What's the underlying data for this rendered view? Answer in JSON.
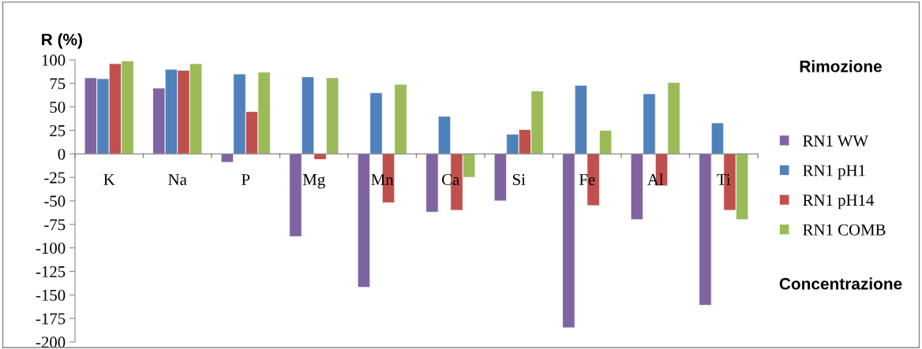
{
  "chart_data": {
    "type": "bar",
    "ylabel": "R (%)",
    "categories": [
      "K",
      "Na",
      "P",
      "Mg",
      "Mn",
      "Ca",
      "Si",
      "Fe",
      "Al",
      "Ti"
    ],
    "series": [
      {
        "name": "RN1 WW",
        "color": "#8064a2",
        "values": [
          81,
          70,
          -9,
          -88,
          -142,
          -62,
          -50,
          -185,
          -70,
          -161
        ]
      },
      {
        "name": "RN1 pH1",
        "color": "#4f81bd",
        "values": [
          80,
          90,
          85,
          82,
          65,
          40,
          21,
          73,
          64,
          33
        ]
      },
      {
        "name": "RN1 pH14",
        "color": "#c0504d",
        "values": [
          96,
          89,
          45,
          -6,
          -52,
          -60,
          26,
          -55,
          -34,
          -60
        ]
      },
      {
        "name": "RN1 COMB",
        "color": "#9bbb59",
        "values": [
          99,
          96,
          87,
          81,
          74,
          -25,
          67,
          25,
          76,
          -70
        ]
      }
    ],
    "ylim": [
      -200,
      100
    ],
    "yticks": [
      -200,
      -175,
      -150,
      -125,
      -100,
      -75,
      -50,
      -25,
      0,
      25,
      50,
      75,
      100
    ],
    "grid": false,
    "legend": "right",
    "annotations": [
      "Rimozione",
      "Concentrazione"
    ]
  }
}
